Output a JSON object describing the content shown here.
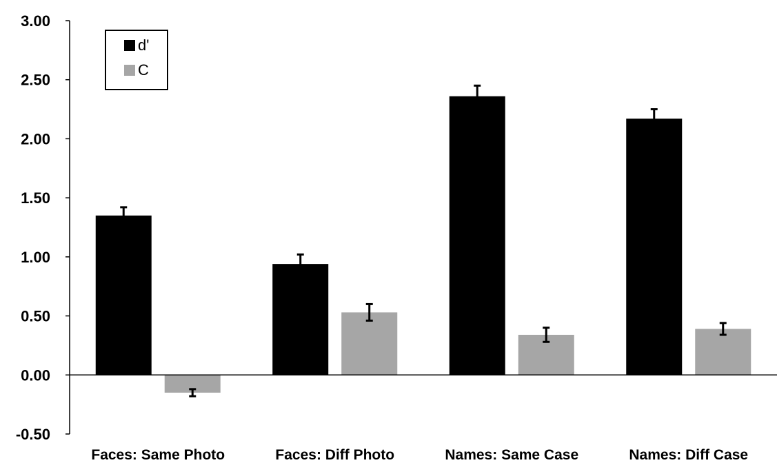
{
  "chart_data": {
    "type": "bar",
    "categories": [
      "Faces: Same Photo",
      "Faces: Diff Photo",
      "Names: Same Case",
      "Names: Diff Case"
    ],
    "series": [
      {
        "name": "d'",
        "values": [
          1.35,
          0.94,
          2.36,
          2.17
        ],
        "errors": [
          0.07,
          0.08,
          0.09,
          0.08
        ],
        "color": "#000000"
      },
      {
        "name": "C",
        "values": [
          -0.15,
          0.53,
          0.34,
          0.39
        ],
        "errors": [
          0.03,
          0.07,
          0.06,
          0.05
        ],
        "color": "#a6a6a6"
      }
    ],
    "title": "",
    "xlabel": "",
    "ylabel": "",
    "ylim": [
      -0.5,
      3.0
    ],
    "yticks": [
      "3.00",
      "2.50",
      "2.00",
      "1.50",
      "1.00",
      "0.50",
      "0.00",
      "-0.50"
    ],
    "grid": false,
    "legend": "top-left"
  }
}
